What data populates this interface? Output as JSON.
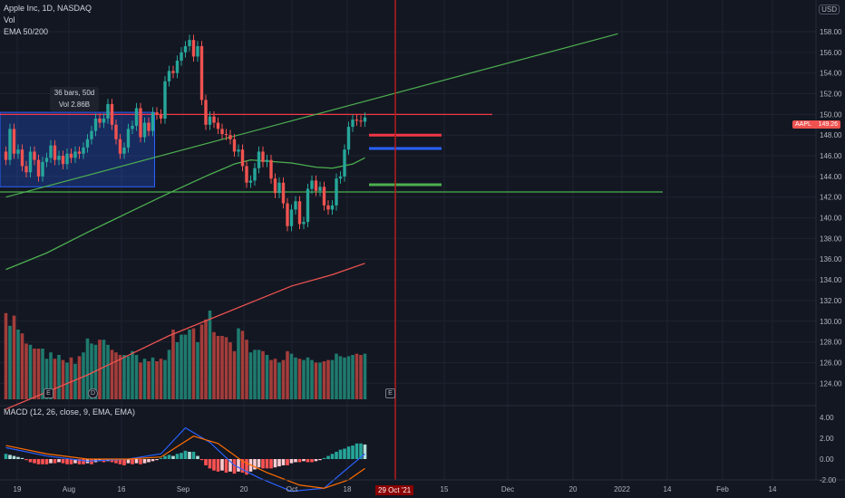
{
  "legend": {
    "symbol": "Apple Inc, 1D, NASDAQ",
    "vol": "Vol",
    "ema": "EMA 50/200",
    "macd": "MACD (12, 26, close, 9, EMA, EMA)"
  },
  "currency_button": "USD",
  "tooltip": {
    "bars": "36 bars, 50d",
    "vol": "Vol 2.86B"
  },
  "events": {
    "earnings": "E",
    "dividend": "D",
    "earnings_upcoming": "E"
  },
  "price_tag": {
    "symbol": "AAPL",
    "value": "149.26"
  },
  "date_tag": "29 Oct '21",
  "colors": {
    "up": "#26a69a",
    "down": "#ef5350",
    "ema50": "#4caf50",
    "ema200": "#ef5350",
    "background": "#131722"
  },
  "chart_data": {
    "type": "candlestick",
    "price_axis_ticks": [
      "158.00",
      "156.00",
      "154.00",
      "152.00",
      "150.00",
      "148.00",
      "146.00",
      "144.00",
      "142.00",
      "140.00",
      "138.00",
      "136.00",
      "134.00",
      "132.00",
      "130.00",
      "128.00",
      "126.00",
      "124.00"
    ],
    "macd_axis_ticks": [
      "4.00",
      "2.00",
      "0.00",
      "-2.00"
    ],
    "time_axis_ticks": [
      "19",
      "Aug",
      "16",
      "Sep",
      "20",
      "Oct",
      "18",
      "15",
      "Dec",
      "20",
      "2022",
      "14",
      "Feb",
      "14"
    ],
    "ylim": [
      123,
      159.5
    ],
    "price_series": [
      [
        146.4,
        145.6
      ],
      [
        145.6,
        148.6
      ],
      [
        148.6,
        146.2
      ],
      [
        146.2,
        146.6
      ],
      [
        146.6,
        145.0
      ],
      [
        145.0,
        144.4
      ],
      [
        144.4,
        146.4
      ],
      [
        146.4,
        145.6
      ],
      [
        145.6,
        144.0
      ],
      [
        144.0,
        145.4
      ],
      [
        145.4,
        145.8
      ],
      [
        145.8,
        147.0
      ],
      [
        147.0,
        145.6
      ],
      [
        145.6,
        146.0
      ],
      [
        146.0,
        145.2
      ],
      [
        145.2,
        146.2
      ],
      [
        146.2,
        145.8
      ],
      [
        145.8,
        146.4
      ],
      [
        146.4,
        146.2
      ],
      [
        146.2,
        146.8
      ],
      [
        146.8,
        147.6
      ],
      [
        147.6,
        148.4
      ],
      [
        148.4,
        149.6
      ],
      [
        149.6,
        149.2
      ],
      [
        149.2,
        149.6
      ],
      [
        149.6,
        151.0
      ],
      [
        151.0,
        149.0
      ],
      [
        149.0,
        147.6
      ],
      [
        147.6,
        146.2
      ],
      [
        146.2,
        146.8
      ],
      [
        146.8,
        148.6
      ],
      [
        148.6,
        148.9
      ],
      [
        148.9,
        150.6
      ],
      [
        150.6,
        147.8
      ],
      [
        147.8,
        149.2
      ],
      [
        149.2,
        148.4
      ],
      [
        148.4,
        150.2
      ],
      [
        150.2,
        150.0
      ],
      [
        150.0,
        149.6
      ],
      [
        149.6,
        153.2
      ],
      [
        153.2,
        154.2
      ],
      [
        154.2,
        154.0
      ],
      [
        154.0,
        155.2
      ],
      [
        155.2,
        156.0
      ],
      [
        156.0,
        156.6
      ],
      [
        156.6,
        157.2
      ],
      [
        157.2,
        155.6
      ],
      [
        155.6,
        156.6
      ],
      [
        156.6,
        151.4
      ],
      [
        151.4,
        149.0
      ],
      [
        149.0,
        149.8
      ],
      [
        149.8,
        149.2
      ],
      [
        149.2,
        148.6
      ],
      [
        148.6,
        148.1
      ],
      [
        148.1,
        148.0
      ],
      [
        148.0,
        147.6
      ],
      [
        147.6,
        146.4
      ],
      [
        146.4,
        146.6
      ],
      [
        146.6,
        145.0
      ],
      [
        145.0,
        143.4
      ],
      [
        143.4,
        143.6
      ],
      [
        143.6,
        144.8
      ],
      [
        144.8,
        146.4
      ],
      [
        146.4,
        145.4
      ],
      [
        145.4,
        145.6
      ],
      [
        145.6,
        143.8
      ],
      [
        143.8,
        142.4
      ],
      [
        142.4,
        143.4
      ],
      [
        143.4,
        141.4
      ],
      [
        141.4,
        139.2
      ],
      [
        139.2,
        140.8
      ],
      [
        140.8,
        141.6
      ],
      [
        141.6,
        139.4
      ],
      [
        139.4,
        139.6
      ],
      [
        139.6,
        142.8
      ],
      [
        142.8,
        143.6
      ],
      [
        143.6,
        142.6
      ],
      [
        142.6,
        143.0
      ],
      [
        143.0,
        141.2
      ],
      [
        141.2,
        140.8
      ],
      [
        140.8,
        141.2
      ],
      [
        141.2,
        143.8
      ],
      [
        143.8,
        144.0
      ],
      [
        144.0,
        146.6
      ],
      [
        146.6,
        148.8
      ],
      [
        148.8,
        149.5
      ],
      [
        149.5,
        149.4
      ],
      [
        149.4,
        149.3
      ],
      [
        149.3,
        149.7
      ]
    ],
    "ema50": [
      [
        0,
        135.0
      ],
      [
        10,
        136.6
      ],
      [
        20,
        138.6
      ],
      [
        30,
        140.5
      ],
      [
        40,
        142.4
      ],
      [
        50,
        144.2
      ],
      [
        56,
        145.2
      ],
      [
        60,
        145.6
      ],
      [
        70,
        145.3
      ],
      [
        76,
        144.9
      ],
      [
        80,
        144.8
      ],
      [
        85,
        145.2
      ],
      [
        88,
        145.8
      ]
    ],
    "ema200": [
      [
        0,
        121.5
      ],
      [
        20,
        124.8
      ],
      [
        40,
        128.6
      ],
      [
        60,
        131.8
      ],
      [
        70,
        133.4
      ],
      [
        80,
        134.5
      ],
      [
        88,
        135.6
      ]
    ],
    "volume": [
      0.68,
      0.58,
      0.66,
      0.55,
      0.52,
      0.44,
      0.43,
      0.4,
      0.4,
      0.4,
      0.32,
      0.37,
      0.32,
      0.35,
      0.31,
      0.29,
      0.33,
      0.28,
      0.34,
      0.37,
      0.48,
      0.44,
      0.43,
      0.47,
      0.47,
      0.43,
      0.39,
      0.37,
      0.35,
      0.35,
      0.34,
      0.38,
      0.35,
      0.29,
      0.32,
      0.3,
      0.33,
      0.3,
      0.32,
      0.31,
      0.39,
      0.55,
      0.45,
      0.51,
      0.51,
      0.55,
      0.56,
      0.45,
      0.59,
      0.63,
      0.7,
      0.53,
      0.5,
      0.5,
      0.49,
      0.45,
      0.38,
      0.56,
      0.54,
      0.47,
      0.37,
      0.39,
      0.39,
      0.38,
      0.35,
      0.31,
      0.32,
      0.29,
      0.31,
      0.38,
      0.36,
      0.33,
      0.32,
      0.31,
      0.33,
      0.31,
      0.29,
      0.29,
      0.3,
      0.31,
      0.31,
      0.36,
      0.34,
      0.33,
      0.34,
      0.35,
      0.36,
      0.35,
      0.36
    ],
    "macd_histogram": [
      0.5,
      0.4,
      0.3,
      0.2,
      0.1,
      -0.1,
      -0.3,
      -0.4,
      -0.5,
      -0.5,
      -0.5,
      -0.4,
      -0.4,
      -0.3,
      -0.4,
      -0.5,
      -0.5,
      -0.4,
      -0.5,
      -0.5,
      -0.4,
      -0.5,
      -0.3,
      -0.2,
      -0.3,
      -0.2,
      -0.3,
      -0.4,
      -0.5,
      -0.6,
      -0.4,
      -0.5,
      -0.4,
      -0.5,
      -0.4,
      -0.3,
      -0.2,
      -0.1,
      0.1,
      0.3,
      0.4,
      0.3,
      0.5,
      0.6,
      0.8,
      0.7,
      0.7,
      0.3,
      -0.1,
      -0.6,
      -0.9,
      -1.1,
      -1.2,
      -1.1,
      -1.3,
      -1.2,
      -1.4,
      -1.2,
      -1.3,
      -1.5,
      -1.2,
      -1.0,
      -0.8,
      -0.9,
      -0.9,
      -0.9,
      -0.8,
      -0.7,
      -0.6,
      -0.6,
      -0.4,
      -0.3,
      -0.3,
      -0.2,
      -0.3,
      -0.3,
      -0.2,
      -0.1,
      0.1,
      0.3,
      0.5,
      0.7,
      0.9,
      1.0,
      1.2,
      1.3,
      1.5,
      1.5,
      1.4
    ],
    "macd_line": [
      [
        0,
        1.1
      ],
      [
        10,
        0.3
      ],
      [
        20,
        -0.2
      ],
      [
        30,
        0.0
      ],
      [
        38,
        0.5
      ],
      [
        44,
        3.0
      ],
      [
        50,
        1.6
      ],
      [
        56,
        -0.6
      ],
      [
        62,
        -1.8
      ],
      [
        70,
        -3.1
      ],
      [
        78,
        -2.8
      ],
      [
        84,
        -0.8
      ],
      [
        88,
        0.5
      ]
    ],
    "signal_line": [
      [
        0,
        1.3
      ],
      [
        10,
        0.5
      ],
      [
        20,
        0.0
      ],
      [
        30,
        0.0
      ],
      [
        38,
        0.2
      ],
      [
        46,
        2.2
      ],
      [
        52,
        1.5
      ],
      [
        58,
        -0.2
      ],
      [
        64,
        -1.3
      ],
      [
        72,
        -2.5
      ],
      [
        78,
        -2.8
      ],
      [
        84,
        -2.0
      ],
      [
        88,
        -0.9
      ]
    ],
    "lines": {
      "resistance": 150.0,
      "support": 142.5,
      "trend_start": [
        0,
        142.0
      ],
      "trend_end": [
        150,
        157.8
      ],
      "short_marks": [
        148.0,
        146.7,
        143.2
      ]
    },
    "range_box": {
      "from_bar": 0,
      "to_bar": 36,
      "top": 150.2,
      "bottom": 143.0
    }
  }
}
